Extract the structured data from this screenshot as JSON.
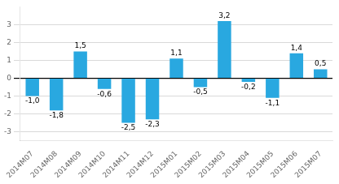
{
  "chart_data": {
    "type": "bar",
    "categories": [
      "2014M07",
      "2014M08",
      "2014M09",
      "2014M10",
      "2014M11",
      "2014M12",
      "2015M01",
      "2015M02",
      "2015M03",
      "2015M04",
      "2015M05",
      "2015M06",
      "2015M07"
    ],
    "values": [
      -1.0,
      -1.8,
      1.5,
      -0.6,
      -2.5,
      -2.3,
      1.1,
      -0.5,
      3.2,
      -0.2,
      -1.1,
      1.4,
      0.5
    ],
    "value_labels": [
      "-1,0",
      "-1,8",
      "1,5",
      "-0,6",
      "-2,5",
      "-2,3",
      "1,1",
      "-0,5",
      "3,2",
      "-0,2",
      "-1,1",
      "1,4",
      "0,5"
    ],
    "color": "#29a8e0",
    "ylim": [
      -3.5,
      4.0
    ],
    "yticks": [
      -3,
      -2,
      -1,
      0,
      1,
      2,
      3
    ],
    "grid": true,
    "data_labels": true
  }
}
